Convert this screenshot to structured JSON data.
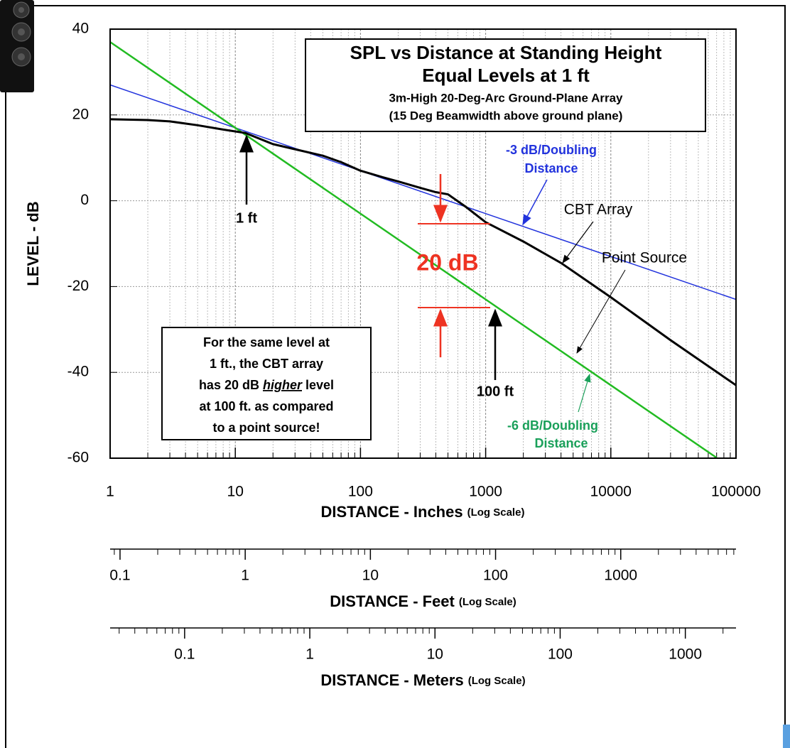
{
  "chart_data": {
    "type": "line",
    "title_lines": [
      "SPL vs Distance at Standing Height",
      "Equal Levels at 1 ft",
      "3m-High 20-Deg-Arc Ground-Plane Array",
      "(15 Deg Beamwidth above ground plane)"
    ],
    "xlabel": "DISTANCE - Inches",
    "xlabel_note": "(Log Scale)",
    "ylabel": "LEVEL - dB",
    "xscale": "log",
    "xlim": [
      1,
      100000
    ],
    "xticks": [
      1,
      10,
      100,
      1000,
      10000,
      100000
    ],
    "xminor": [
      2,
      3,
      4,
      5,
      6,
      7,
      8,
      9
    ],
    "ylim": [
      -60,
      40
    ],
    "yticks": [
      40,
      20,
      0,
      -20,
      -40,
      -60
    ],
    "grid": true,
    "series": [
      {
        "name": "CBT Array",
        "color": "#000000",
        "x": [
          1,
          2,
          3,
          5,
          8,
          12,
          20,
          30,
          50,
          70,
          100,
          150,
          200,
          300,
          400,
          500,
          700,
          1000,
          2000,
          4000,
          10000,
          30000,
          100000
        ],
        "values": [
          19,
          18.8,
          18.5,
          17.6,
          16.6,
          15.8,
          13.2,
          12,
          10.5,
          9,
          7,
          5.5,
          4.5,
          3,
          2,
          1.5,
          -1.5,
          -5,
          -9.5,
          -14.5,
          -22.5,
          -32.5,
          -43
        ]
      },
      {
        "name": "Point Source",
        "color": "#22bb22",
        "label_lines": [
          "-6 dB/Doubling",
          "Distance"
        ],
        "label_color": "#1aa05a",
        "x": [
          1,
          10,
          100,
          1000,
          10000,
          70000
        ],
        "values": [
          37,
          17,
          -3,
          -23,
          -43,
          -59.9
        ]
      },
      {
        "color": "#2233dd",
        "label_lines": [
          "-3 dB/Doubling",
          "Distance"
        ],
        "x": [
          1,
          10,
          100,
          1000,
          10000,
          100000
        ],
        "values": [
          27,
          17,
          7,
          -3,
          -13,
          -23
        ]
      }
    ],
    "secondary_axes": [
      {
        "label": "DISTANCE - Feet",
        "note": "(Log Scale)",
        "xlim": [
          0.08333,
          8333.33
        ],
        "xticks": [
          0.1,
          1,
          10,
          100,
          1000
        ]
      },
      {
        "label": "DISTANCE - Meters",
        "note": "(Log Scale)",
        "xlim": [
          0.0254,
          2540
        ],
        "xticks": [
          0.1,
          1,
          10,
          100,
          1000
        ]
      }
    ],
    "annotations": {
      "one_ft": "1 ft",
      "hundred_ft": "100 ft",
      "difference": "20 dB",
      "note_lines": [
        "For the same level at",
        "1 ft., the CBT array",
        [
          "has 20 dB",
          "higher",
          "level"
        ],
        "at 100 ft. as compared",
        "to a point source!"
      ]
    }
  }
}
